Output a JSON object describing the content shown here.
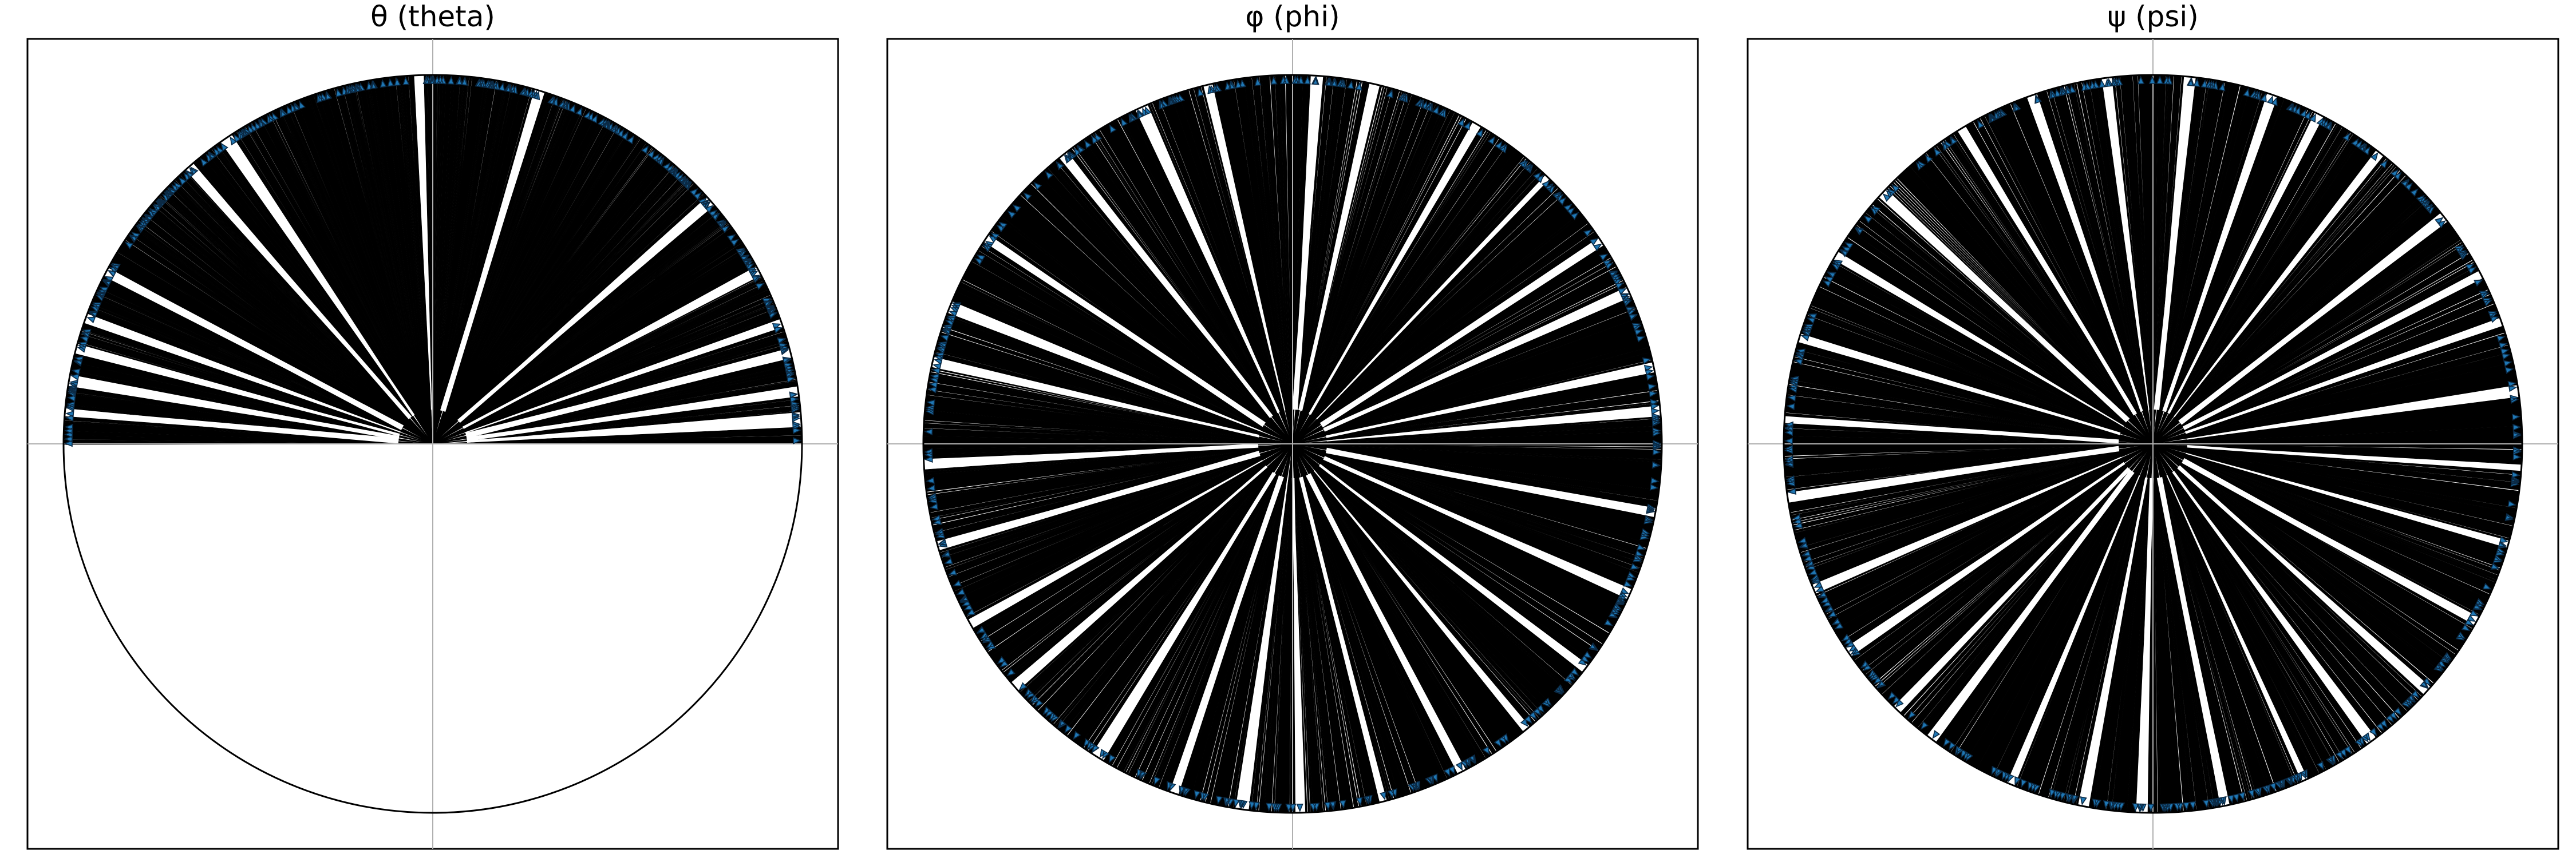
{
  "figure": {
    "background": "#ffffff"
  },
  "chart_data": [
    {
      "type": "polar-angle-distribution",
      "title": "θ (theta)",
      "angle_range_deg": [
        0,
        180
      ],
      "sample_count": 800,
      "line_color": "#000000",
      "marker_color": "#1f77b4",
      "grid": true,
      "gap_angles_deg": [
        3,
        4,
        8,
        14,
        19,
        28,
        41,
        73,
        92,
        124,
        131,
        152,
        160,
        165,
        170,
        175
      ]
    },
    {
      "type": "polar-angle-distribution",
      "title": "φ (phi)",
      "angle_range_deg": [
        0,
        360
      ],
      "sample_count": 900,
      "line_color": "#000000",
      "marker_color": "#1f77b4",
      "grid": true,
      "gap_angles_deg": [
        5,
        12,
        24,
        33,
        46,
        60,
        77,
        86,
        103,
        114,
        128,
        146,
        158,
        167,
        183,
        196,
        209,
        221,
        238,
        251,
        262,
        271,
        284,
        297,
        309,
        322,
        336,
        349
      ]
    },
    {
      "type": "polar-angle-distribution",
      "title": "ψ (psi)",
      "angle_range_deg": [
        0,
        360
      ],
      "sample_count": 900,
      "line_color": "#000000",
      "marker_color": "#1f77b4",
      "grid": true,
      "gap_angles_deg": [
        8,
        19,
        27,
        38,
        52,
        63,
        71,
        84,
        97,
        109,
        121,
        137,
        149,
        163,
        176,
        188,
        203,
        214,
        226,
        233,
        247,
        259,
        268,
        281,
        294,
        306,
        318,
        331,
        344,
        356
      ]
    }
  ]
}
